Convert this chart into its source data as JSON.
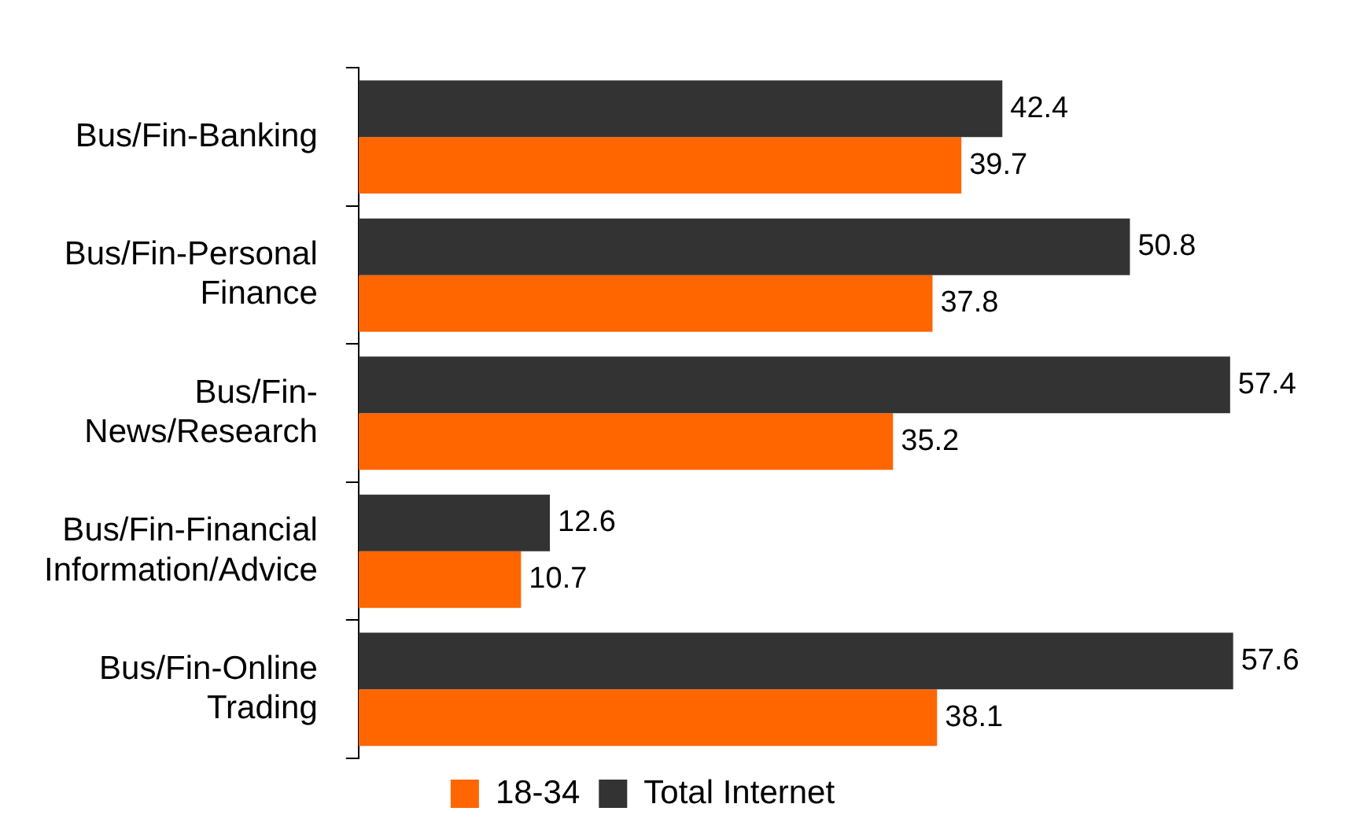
{
  "chart_data": {
    "type": "bar",
    "orientation": "horizontal",
    "categories": [
      "Bus/Fin-Banking",
      "Bus/Fin-Personal Finance",
      "Bus/Fin-News/Research",
      "Bus/Fin-Financial Information/Advice",
      "Bus/Fin-Online Trading"
    ],
    "series": [
      {
        "name": "Total Internet",
        "color": "#333333",
        "values": [
          42.4,
          50.8,
          57.4,
          12.6,
          57.6
        ]
      },
      {
        "name": "18-34",
        "color": "#ff6600",
        "values": [
          39.7,
          37.8,
          35.2,
          10.7,
          38.1
        ]
      }
    ],
    "data_labels": true,
    "legend": "bottom"
  }
}
